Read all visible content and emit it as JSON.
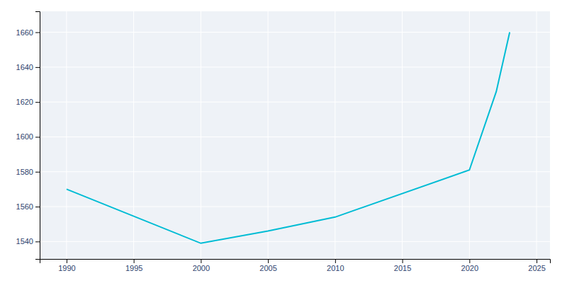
{
  "chart_data": {
    "type": "line",
    "x": [
      1990,
      2000,
      2005,
      2010,
      2020,
      2022,
      2023
    ],
    "values": [
      1570,
      1539,
      1546,
      1554,
      1581,
      1626,
      1660
    ],
    "color": "#00BCD4",
    "xlim": [
      1988,
      2026
    ],
    "ylim": [
      1530,
      1672
    ],
    "xticks": [
      1990,
      1995,
      2000,
      2005,
      2010,
      2015,
      2020,
      2025
    ],
    "yticks": [
      1540,
      1560,
      1580,
      1600,
      1620,
      1640,
      1660
    ],
    "grid": true
  }
}
